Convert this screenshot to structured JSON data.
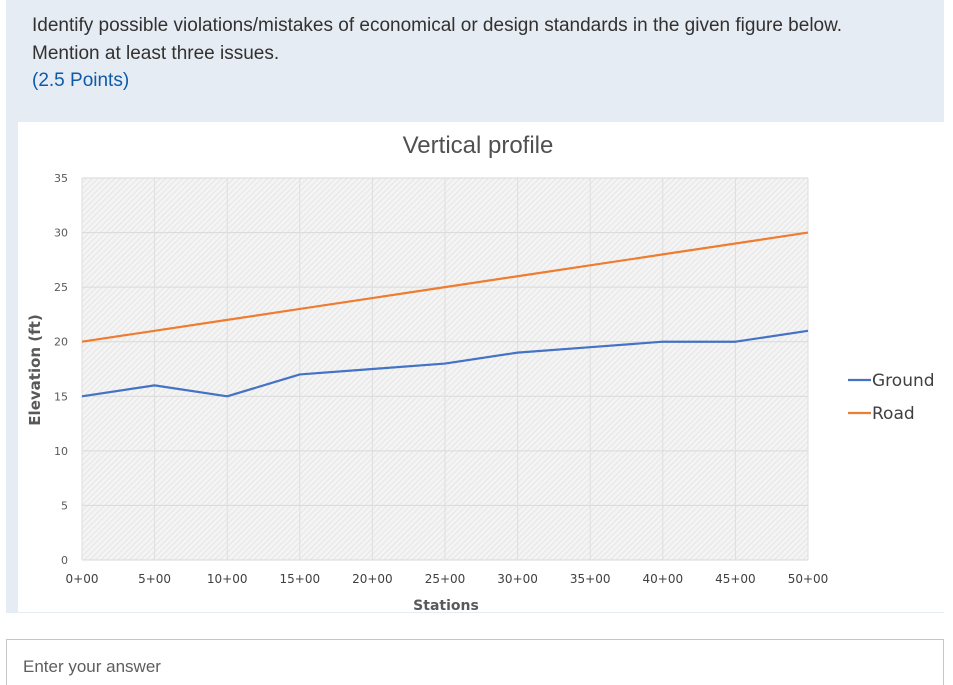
{
  "question": {
    "text": "Identify possible violations/mistakes of economical or design standards in the given figure below. Mention at least three issues.",
    "points": "(2.5 Points)"
  },
  "answer": {
    "placeholder": "Enter your answer"
  },
  "chart_data": {
    "type": "line",
    "title": "Vertical profile",
    "xlabel": "Stations",
    "ylabel": "Elevation (ft)",
    "categories": [
      "0+00",
      "5+00",
      "10+00",
      "15+00",
      "20+00",
      "25+00",
      "30+00",
      "35+00",
      "40+00",
      "45+00",
      "50+00"
    ],
    "yticks": [
      0,
      5,
      10,
      15,
      20,
      25,
      30,
      35
    ],
    "ylim": [
      0,
      35
    ],
    "grid": true,
    "legend_position": "right",
    "series": [
      {
        "name": "Ground",
        "color": "#4472c4",
        "values": [
          15,
          16,
          15,
          17,
          17.5,
          18,
          19,
          19.5,
          20,
          20,
          21
        ]
      },
      {
        "name": "Road",
        "color": "#ed7d31",
        "values": [
          20,
          21,
          22,
          23,
          24,
          25,
          26,
          27,
          28,
          29,
          30
        ]
      }
    ]
  }
}
